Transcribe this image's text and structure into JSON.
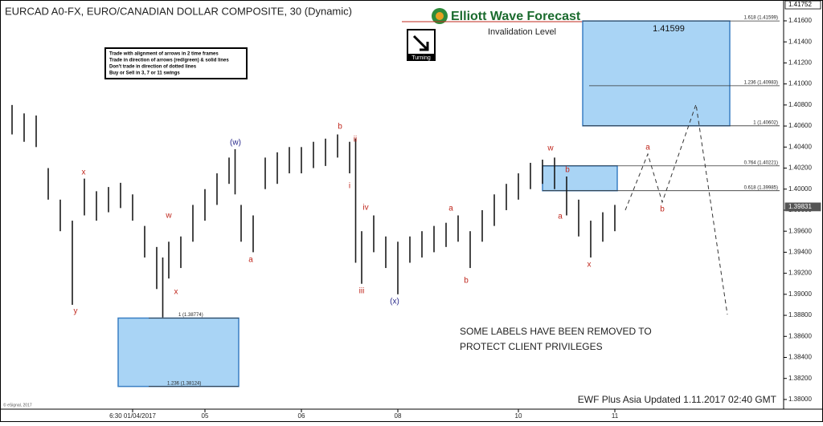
{
  "chart_data": {
    "type": "ohlc",
    "title": "EURCAD A0-FX, EURO/CANADIAN DOLLAR COMPOSITE, 30 (Dynamic)",
    "brand": "Elliott Wave Forecast",
    "invalidation_label": "Invalidation Level",
    "turning_label": "Turning",
    "rules": [
      "Trade with alignment of arrows in 2 time frames",
      "Trade in direction of arrows (red/green) & solid lines",
      "Don't trade in direction of dotted lines",
      "Buy or Sell in 3, 7 or 11 swings"
    ],
    "note": [
      "SOME LABELS HAVE BEEN REMOVED TO",
      "PROTECT CLIENT PRIVILEGES"
    ],
    "footer": "EWF Plus Asia Updated 1.11.2017 02:40 GMT",
    "copyright": "© eSignal, 2017",
    "target_label": "1.41599",
    "color": "#1a1a1a",
    "x": [
      2,
      4,
      6,
      8,
      10,
      12,
      14,
      16,
      18,
      20,
      22,
      24,
      26,
      27,
      28,
      30,
      32,
      34,
      36,
      38,
      39,
      40,
      42,
      44,
      46,
      48,
      50,
      52,
      54,
      56,
      58,
      59,
      60,
      62,
      64,
      66,
      68,
      70,
      72,
      74,
      76,
      78,
      80,
      82,
      84,
      86,
      88,
      90,
      92,
      94,
      96,
      98,
      100,
      102
    ],
    "series": [
      {
        "name": "High",
        "values": [
          1.408,
          1.4072,
          1.407,
          1.402,
          1.399,
          1.397,
          1.401,
          1.3998,
          1.4002,
          1.4006,
          1.3995,
          1.3965,
          1.3945,
          1.3935,
          1.395,
          1.3955,
          1.3985,
          1.4,
          1.4015,
          1.403,
          1.4038,
          1.3985,
          1.3975,
          1.403,
          1.4035,
          1.404,
          1.404,
          1.4045,
          1.4048,
          1.4052,
          1.4045,
          1.4048,
          1.396,
          1.3975,
          1.3955,
          1.395,
          1.3955,
          1.396,
          1.3965,
          1.3968,
          1.3975,
          1.396,
          1.398,
          1.3995,
          1.4005,
          1.4015,
          1.4025,
          1.4028,
          1.403,
          1.4012,
          1.399,
          1.397,
          1.3978,
          1.3985
        ]
      },
      {
        "name": "Low",
        "values": [
          1.4052,
          1.4045,
          1.404,
          1.399,
          1.396,
          1.389,
          1.3975,
          1.397,
          1.3978,
          1.3982,
          1.397,
          1.3935,
          1.3905,
          1.3878,
          1.3915,
          1.3925,
          1.395,
          1.397,
          1.3985,
          1.4005,
          1.3995,
          1.395,
          1.394,
          1.4,
          1.4005,
          1.4015,
          1.4015,
          1.402,
          1.4022,
          1.403,
          1.4015,
          1.393,
          1.391,
          1.394,
          1.3925,
          1.39,
          1.393,
          1.3935,
          1.394,
          1.3945,
          1.395,
          1.3925,
          1.395,
          1.3965,
          1.398,
          1.399,
          1.4,
          1.4005,
          1.4,
          1.3975,
          1.3955,
          1.3935,
          1.395,
          1.396
        ]
      }
    ],
    "xlim": [
      0,
      130
    ],
    "xticks": [
      {
        "value": 22,
        "label": "6:30 01/04/2017"
      },
      {
        "value": 34,
        "label": "05"
      },
      {
        "value": 50,
        "label": "06"
      },
      {
        "value": 66,
        "label": "08"
      },
      {
        "value": 86,
        "label": "10"
      },
      {
        "value": 102,
        "label": "11"
      }
    ],
    "ylim": [
      1.37908,
      1.4176
    ],
    "yticks": [
      {
        "value": 1.38,
        "label": "1.38000"
      },
      {
        "value": 1.382,
        "label": "1.38200"
      },
      {
        "value": 1.384,
        "label": "1.38400"
      },
      {
        "value": 1.386,
        "label": "1.38600"
      },
      {
        "value": 1.388,
        "label": "1.38800"
      },
      {
        "value": 1.39,
        "label": "1.39000"
      },
      {
        "value": 1.392,
        "label": "1.39200"
      },
      {
        "value": 1.394,
        "label": "1.39400"
      },
      {
        "value": 1.396,
        "label": "1.39600"
      },
      {
        "value": 1.398,
        "label": "1.39800"
      },
      {
        "value": 1.4,
        "label": "1.40000"
      },
      {
        "value": 1.402,
        "label": "1.40200"
      },
      {
        "value": 1.404,
        "label": "1.40400"
      },
      {
        "value": 1.406,
        "label": "1.40600"
      },
      {
        "value": 1.408,
        "label": "1.40800"
      },
      {
        "value": 1.41,
        "label": "1.41000"
      },
      {
        "value": 1.412,
        "label": "1.41200"
      },
      {
        "value": 1.414,
        "label": "1.41400"
      },
      {
        "value": 1.416,
        "label": "1.41600"
      }
    ],
    "price_markers": [
      1.41752,
      1.39831
    ],
    "fib_levels": [
      {
        "value": 1.41599,
        "label": "1.618 (1.41599)"
      },
      {
        "value": 1.40983,
        "label": "1.236 (1.40983)"
      },
      {
        "value": 1.40602,
        "label": "1 (1.40602)"
      },
      {
        "value": 1.40221,
        "label": "0.764 (1.40221)"
      },
      {
        "value": 1.39985,
        "label": "0.618 (1.39985)"
      },
      {
        "value": 1.38774,
        "label": "1 (1.38774)"
      },
      {
        "value": 1.38124,
        "label": "1.236 (1.38124)"
      }
    ],
    "wave_labels": [
      {
        "text": "x",
        "color": "#c0281e"
      },
      {
        "text": "y",
        "color": "#c0281e"
      },
      {
        "text": "w",
        "color": "#c0281e"
      },
      {
        "text": "x",
        "color": "#c0281e"
      },
      {
        "text": "(w)",
        "color": "#2a2a8c"
      },
      {
        "text": "a",
        "color": "#c0281e"
      },
      {
        "text": "b",
        "color": "#c0281e"
      },
      {
        "text": "ii",
        "color": "#c0281e"
      },
      {
        "text": "i",
        "color": "#c0281e"
      },
      {
        "text": "iv",
        "color": "#c0281e"
      },
      {
        "text": "iii",
        "color": "#c0281e"
      },
      {
        "text": "(x)",
        "color": "#2a2a8c"
      },
      {
        "text": "a",
        "color": "#c0281e"
      },
      {
        "text": "b",
        "color": "#c0281e"
      },
      {
        "text": "w",
        "color": "#c0281e"
      },
      {
        "text": "b",
        "color": "#c0281e"
      },
      {
        "text": "a",
        "color": "#c0281e"
      },
      {
        "text": "x",
        "color": "#c0281e"
      },
      {
        "text": "a",
        "color": "#c0281e"
      },
      {
        "text": "b",
        "color": "#c0281e"
      }
    ]
  }
}
